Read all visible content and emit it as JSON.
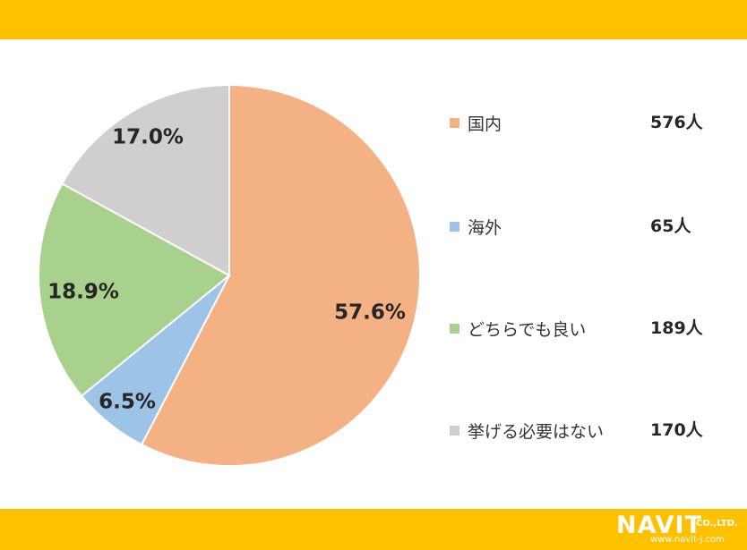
{
  "chart_data": {
    "type": "pie",
    "categories": [
      "国内",
      "海外",
      "どちらでも良い",
      "挙げる必要はない"
    ],
    "values": [
      576,
      65,
      189,
      170
    ],
    "percent_labels": [
      "57.6%",
      "6.5%",
      "18.9%",
      "17.0%"
    ],
    "count_labels": [
      "576人",
      "65人",
      "189人",
      "170人"
    ],
    "colors": [
      "#F4B183",
      "#9DC3E6",
      "#A9D18E",
      "#D0CECE"
    ],
    "legend_position": "right"
  },
  "brand": {
    "name": "NAVIT",
    "suffix": "CO.,LTD.",
    "url": "www.navit-j.com",
    "bar_color": "#FFC000"
  }
}
